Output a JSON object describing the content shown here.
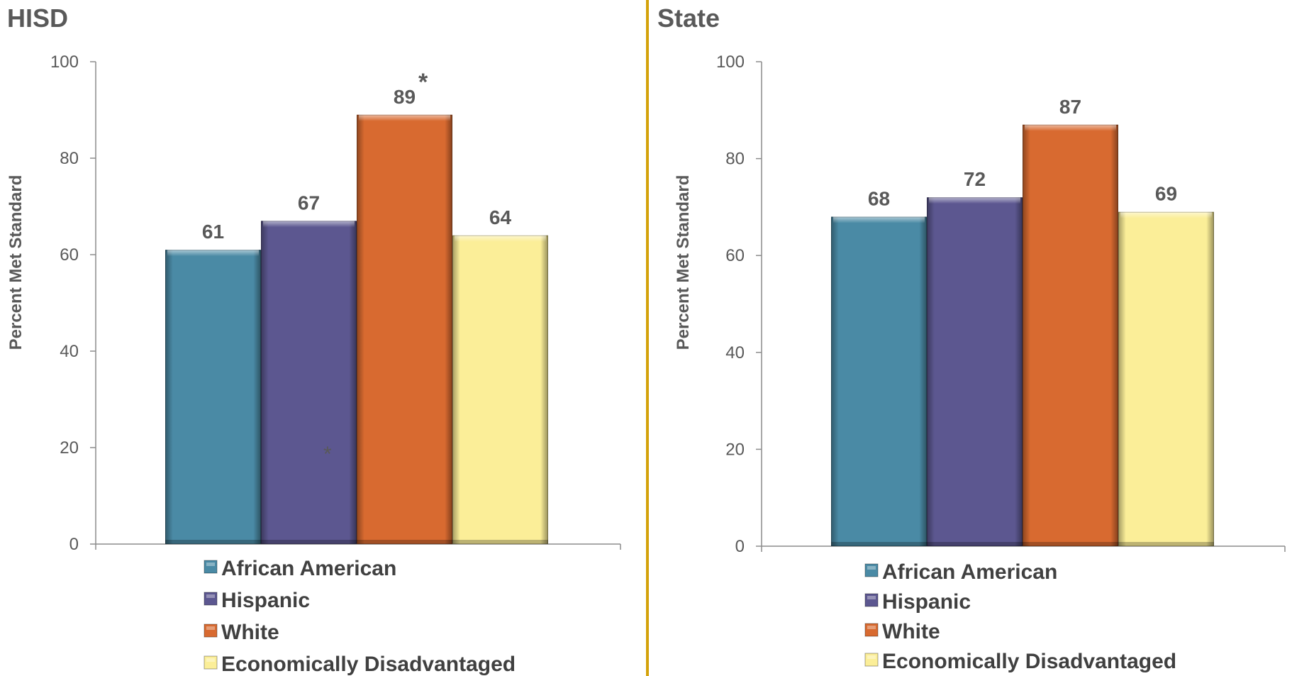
{
  "colors": {
    "african_american": "#4a8aa5",
    "hispanic": "#5c5790",
    "white": "#d86a30",
    "econ_disadv": "#fbee98",
    "divider": "#d4a20a",
    "text": "#595959",
    "axis": "#8c8c8c"
  },
  "chart_data": [
    {
      "type": "bar",
      "title": "HISD",
      "ylabel": "Percent  Met  Standard",
      "xlabel": "",
      "ylim": [
        0,
        100
      ],
      "yticks": [
        0,
        20,
        40,
        60,
        80,
        100
      ],
      "grid": false,
      "legend": "bottom",
      "categories": [
        "African American",
        "Hispanic",
        "White",
        "Economically Disadvantaged"
      ],
      "values": [
        61,
        67,
        89,
        64
      ],
      "annotations": [
        "*",
        "*"
      ]
    },
    {
      "type": "bar",
      "title": "State",
      "ylabel": "Percent  Met  Standard",
      "xlabel": "",
      "ylim": [
        0,
        100
      ],
      "yticks": [
        0,
        20,
        40,
        60,
        80,
        100
      ],
      "grid": false,
      "legend": "bottom",
      "categories": [
        "African American",
        "Hispanic",
        "White",
        "Economically Disadvantaged"
      ],
      "values": [
        68,
        72,
        87,
        69
      ]
    }
  ]
}
